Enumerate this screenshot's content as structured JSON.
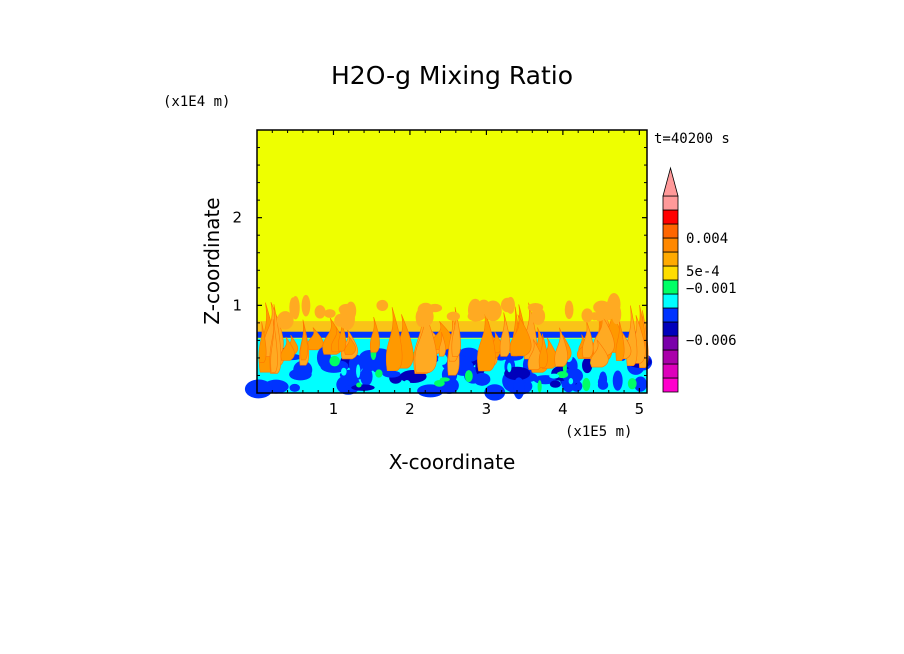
{
  "chart_data": {
    "type": "heatmap",
    "title": "H2O-g Mixing Ratio",
    "xlabel": "X-coordinate",
    "ylabel": "Z-coordinate",
    "x_unit": "(x1E5 m)",
    "y_unit": "(x1E4 m)",
    "time_label": "t=40200 s",
    "xlim": [
      0,
      5.1
    ],
    "ylim": [
      0,
      3.0
    ],
    "x_ticks": [
      "1",
      "2",
      "3",
      "4",
      "5"
    ],
    "x_tick_values": [
      1,
      2,
      3,
      4,
      5
    ],
    "y_ticks": [
      "1",
      "2"
    ],
    "y_tick_values": [
      1,
      2
    ],
    "colorbar": {
      "colors": [
        "#ff00cc",
        "#dd00bb",
        "#aa00aa",
        "#7a00aa",
        "#0000bb",
        "#0033ff",
        "#00ffff",
        "#00ff66",
        "#ffdd00",
        "#ffaa00",
        "#ff8800",
        "#ff6600",
        "#ff0000",
        "#ff9999"
      ],
      "labels": [
        "0.004",
        "5e-4",
        "−0.001",
        "−0.006"
      ],
      "extend": "max"
    },
    "field_layers": [
      {
        "name": "background",
        "z_range": [
          0.8,
          3.0
        ],
        "color": "#eeff00"
      },
      {
        "name": "cyan band",
        "z_range": [
          0.0,
          0.62
        ],
        "color": "#00ffff"
      },
      {
        "name": "dark blue band",
        "z_range": [
          0.63,
          0.7
        ],
        "color": "#0033ff"
      },
      {
        "name": "blue turbulent layer",
        "z_range": [
          0.0,
          0.45
        ],
        "color": "#0033ff"
      },
      {
        "name": "orange plumes",
        "z_range": [
          0.2,
          1.05
        ],
        "color": "#ffaa22"
      }
    ]
  }
}
